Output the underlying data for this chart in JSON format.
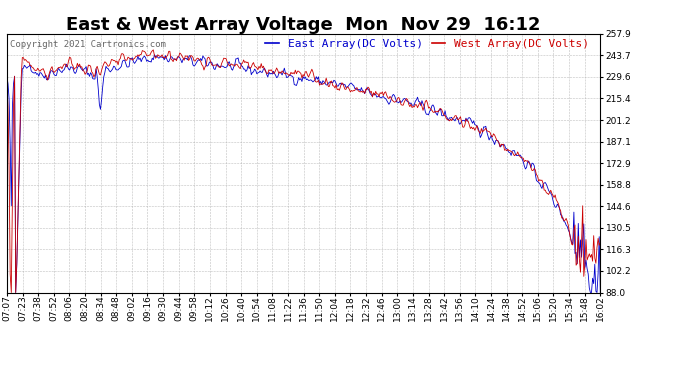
{
  "title": "East & West Array Voltage  Mon  Nov 29  16:12",
  "copyright": "Copyright 2021 Cartronics.com",
  "legend_east": "East Array(DC Volts)",
  "legend_west": "West Array(DC Volts)",
  "east_color": "#0000cc",
  "west_color": "#cc0000",
  "bg_color": "#ffffff",
  "grid_color": "#b0b0b0",
  "ylim": [
    88.0,
    257.9
  ],
  "yticks": [
    88.0,
    102.2,
    116.3,
    130.5,
    144.6,
    158.8,
    172.9,
    187.1,
    201.2,
    215.4,
    229.6,
    243.7,
    257.9
  ],
  "xtick_labels": [
    "07:07",
    "07:23",
    "07:38",
    "07:52",
    "08:06",
    "08:20",
    "08:34",
    "08:48",
    "09:02",
    "09:16",
    "09:30",
    "09:44",
    "09:58",
    "10:12",
    "10:26",
    "10:40",
    "10:54",
    "11:08",
    "11:22",
    "11:36",
    "11:50",
    "12:04",
    "12:18",
    "12:32",
    "12:46",
    "13:00",
    "13:14",
    "13:28",
    "13:42",
    "13:56",
    "14:10",
    "14:24",
    "14:38",
    "14:52",
    "15:06",
    "15:20",
    "15:34",
    "15:48",
    "16:02"
  ],
  "title_fontsize": 13,
  "label_fontsize": 8,
  "tick_fontsize": 6.5,
  "copyright_fontsize": 6.5
}
